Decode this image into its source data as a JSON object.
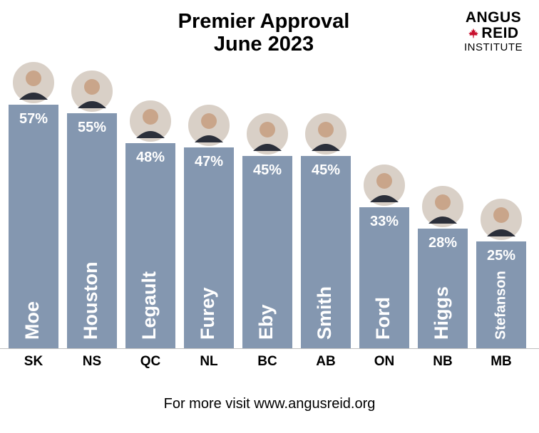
{
  "header": {
    "title_line1": "Premier Approval",
    "title_line2": "June 2023"
  },
  "logo": {
    "line1": "ANGUS",
    "line2": "REID",
    "line3": "INSTITUTE",
    "leaf_color": "#c8102e"
  },
  "footer": {
    "text": "For more visit www.angusreid.org"
  },
  "colors": {
    "bar": "#8497b0",
    "bar_text": "#ffffff",
    "axis": "#bfbfbf"
  },
  "chart_data": {
    "type": "bar",
    "title": "Premier Approval June 2023",
    "categories": [
      "SK",
      "NS",
      "QC",
      "NL",
      "BC",
      "AB",
      "ON",
      "NB",
      "MB"
    ],
    "names": [
      "Moe",
      "Houston",
      "Legault",
      "Furey",
      "Eby",
      "Smith",
      "Ford",
      "Higgs",
      "Stefanson"
    ],
    "values": [
      57,
      55,
      48,
      47,
      45,
      45,
      33,
      28,
      25
    ],
    "value_labels": [
      "57%",
      "55%",
      "48%",
      "47%",
      "45%",
      "45%",
      "33%",
      "28%",
      "25%"
    ],
    "unit": "%",
    "ylim": [
      0,
      60
    ],
    "grid": false,
    "legend": "none"
  }
}
